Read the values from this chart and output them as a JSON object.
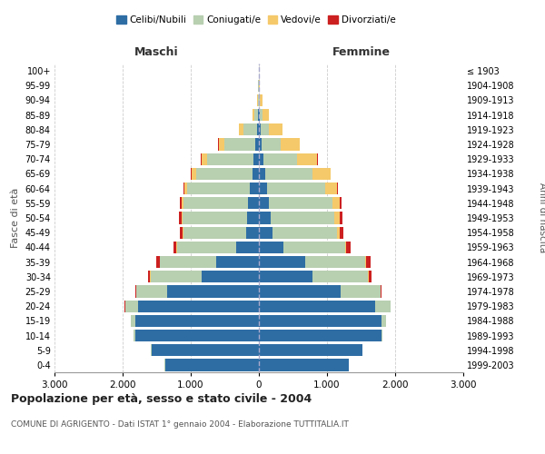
{
  "age_groups": [
    "0-4",
    "5-9",
    "10-14",
    "15-19",
    "20-24",
    "25-29",
    "30-34",
    "35-39",
    "40-44",
    "45-49",
    "50-54",
    "55-59",
    "60-64",
    "65-69",
    "70-74",
    "75-79",
    "80-84",
    "85-89",
    "90-94",
    "95-99",
    "100+"
  ],
  "birth_years": [
    "1999-2003",
    "1994-1998",
    "1989-1993",
    "1984-1988",
    "1979-1983",
    "1974-1978",
    "1969-1973",
    "1964-1968",
    "1959-1963",
    "1954-1958",
    "1949-1953",
    "1944-1948",
    "1939-1943",
    "1934-1938",
    "1929-1933",
    "1924-1928",
    "1919-1923",
    "1914-1918",
    "1909-1913",
    "1904-1908",
    "≤ 1903"
  ],
  "male": {
    "celibi": [
      1380,
      1580,
      1820,
      1820,
      1780,
      1350,
      840,
      630,
      330,
      190,
      175,
      155,
      130,
      100,
      80,
      50,
      30,
      15,
      5,
      2,
      2
    ],
    "coniugati": [
      3,
      5,
      20,
      60,
      180,
      450,
      750,
      820,
      870,
      920,
      940,
      950,
      920,
      820,
      680,
      460,
      200,
      55,
      15,
      5,
      2
    ],
    "vedovi": [
      0,
      0,
      0,
      1,
      2,
      3,
      5,
      8,
      10,
      15,
      25,
      35,
      50,
      70,
      85,
      80,
      60,
      25,
      8,
      2,
      1
    ],
    "divorziati": [
      0,
      0,
      1,
      2,
      5,
      15,
      30,
      50,
      45,
      40,
      30,
      20,
      12,
      8,
      5,
      4,
      3,
      2,
      1,
      0,
      0
    ]
  },
  "female": {
    "nubili": [
      1320,
      1520,
      1800,
      1800,
      1700,
      1200,
      780,
      680,
      360,
      200,
      170,
      150,
      120,
      90,
      65,
      40,
      20,
      10,
      5,
      2,
      2
    ],
    "coniugate": [
      2,
      4,
      18,
      65,
      230,
      580,
      820,
      880,
      900,
      940,
      940,
      930,
      850,
      700,
      500,
      280,
      120,
      40,
      12,
      4,
      1
    ],
    "vedove": [
      0,
      0,
      0,
      1,
      3,
      5,
      8,
      12,
      20,
      40,
      70,
      110,
      180,
      260,
      290,
      280,
      200,
      100,
      30,
      5,
      2
    ],
    "divorziate": [
      0,
      0,
      1,
      2,
      6,
      18,
      40,
      70,
      65,
      55,
      40,
      22,
      12,
      8,
      6,
      5,
      3,
      2,
      1,
      0,
      0
    ]
  },
  "colors": {
    "celibi": "#2E6DA4",
    "coniugati": "#B8CFB0",
    "vedovi": "#F5C96A",
    "divorziati": "#CC2020"
  },
  "xlim": 3000,
  "title": "Popolazione per età, sesso e stato civile - 2004",
  "subtitle": "COMUNE DI AGRIGENTO - Dati ISTAT 1° gennaio 2004 - Elaborazione TUTTITALIA.IT",
  "ylabel_left": "Fasce di età",
  "ylabel_right": "Anni di nascita",
  "xlabel_left": "Maschi",
  "xlabel_right": "Femmine",
  "legend_labels": [
    "Celibi/Nubili",
    "Coniugati/e",
    "Vedovi/e",
    "Divorziati/e"
  ],
  "bg_color": "#ffffff",
  "grid_color": "#cccccc"
}
